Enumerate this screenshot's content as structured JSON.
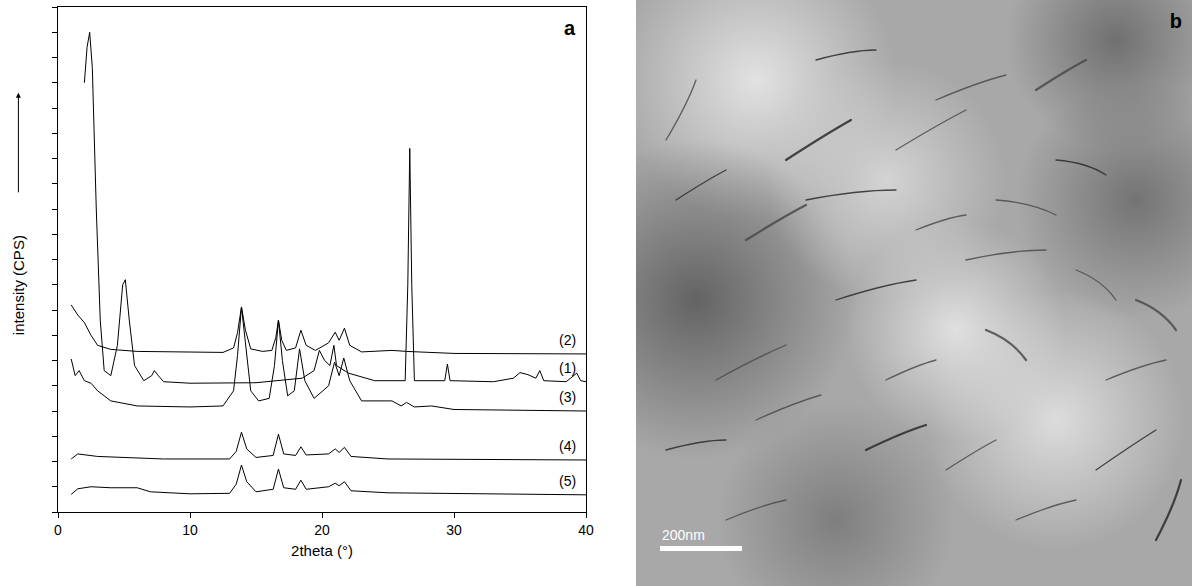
{
  "chart_data": {
    "type": "line",
    "panel_label": "a",
    "x_label": "2theta (°)",
    "y_label": "intensity (CPS)",
    "xlim": [
      0,
      40
    ],
    "xticks": [
      0,
      10,
      20,
      30,
      40
    ],
    "ylim": [
      0,
      100
    ],
    "yticks": [
      0,
      5,
      10,
      15,
      20,
      25,
      30,
      35,
      40,
      45,
      50,
      55,
      60,
      65,
      70,
      75,
      80,
      85,
      90,
      95,
      100
    ],
    "tick_labels": "x",
    "grid": false,
    "series": [
      {
        "name": "(1)",
        "color": "#000000",
        "x": [
          2.0,
          2.2,
          2.4,
          2.6,
          2.9,
          3.2,
          3.5,
          4.0,
          4.5,
          4.9,
          5.1,
          5.4,
          5.8,
          6.5,
          7.1,
          7.3,
          7.6,
          8,
          10,
          15,
          18.5,
          19.4,
          19.8,
          20.2,
          20.6,
          20.9,
          21.1,
          22,
          24,
          26.3,
          26.5,
          26.65,
          26.8,
          27,
          29.3,
          29.5,
          29.7,
          33,
          34.5,
          35,
          35.6,
          36.2,
          36.5,
          36.8,
          38.5,
          39.3,
          39.6,
          40
        ],
        "values": [
          85,
          92,
          95,
          88,
          60,
          38,
          28,
          27,
          33,
          45,
          46,
          38,
          29,
          26,
          27,
          28,
          27,
          25.8,
          25.5,
          25.6,
          26.5,
          28,
          32,
          30,
          29,
          33,
          29,
          27.5,
          26,
          26,
          45,
          72,
          45,
          26,
          26,
          29.3,
          26,
          25.8,
          26.5,
          27.6,
          27.2,
          26.5,
          28,
          26,
          25.8,
          27.5,
          26,
          25.8
        ]
      },
      {
        "name": "(2)",
        "color": "#000000",
        "x": [
          1.0,
          1.5,
          2,
          2.5,
          3,
          4,
          6,
          10,
          12.5,
          13.3,
          13.6,
          13.9,
          14.2,
          14.6,
          15.5,
          16.2,
          16.5,
          16.7,
          16.95,
          17.3,
          18,
          18.4,
          18.8,
          19.5,
          20.5,
          21,
          21.3,
          21.7,
          22.1,
          23,
          25.3,
          26.4,
          30,
          40
        ],
        "values": [
          41,
          39,
          37.5,
          35,
          33,
          32.2,
          31.8,
          31.6,
          31.6,
          32.5,
          35.5,
          40.6,
          36,
          32.3,
          31.8,
          32,
          34.5,
          38,
          34,
          32,
          32.5,
          36,
          33,
          32,
          33.5,
          35.6,
          34,
          36.4,
          33,
          31.7,
          32,
          31.8,
          31.4,
          31.3
        ]
      },
      {
        "name": "(3)",
        "color": "#000000",
        "x": [
          1,
          1.3,
          1.6,
          2,
          2.5,
          3,
          4,
          6,
          10,
          12.5,
          13.3,
          13.6,
          13.9,
          14.2,
          14.6,
          15.2,
          16,
          16.4,
          16.7,
          17,
          17.4,
          17.9,
          18.3,
          18.7,
          19.4,
          20.5,
          20.95,
          21.3,
          21.65,
          22.1,
          23,
          25.3,
          26,
          26.4,
          27,
          28.3,
          30,
          40
        ],
        "values": [
          30.3,
          27,
          28,
          26,
          25.5,
          24,
          22,
          21,
          20.8,
          21,
          24,
          31,
          40.6,
          33,
          24,
          22,
          22.5,
          29,
          38,
          30,
          23,
          24,
          32.3,
          26,
          22.5,
          25,
          29.7,
          27,
          30.5,
          26,
          22,
          22,
          21,
          21.7,
          20.8,
          21,
          20.3,
          20
        ]
      },
      {
        "name": "(4)",
        "color": "#000000",
        "x": [
          1,
          1.5,
          3,
          8,
          13,
          13.5,
          13.9,
          14.3,
          15,
          16.3,
          16.7,
          17.1,
          18,
          18.4,
          18.8,
          20.5,
          21,
          21.3,
          21.7,
          22.2,
          25,
          40
        ],
        "values": [
          10.5,
          11.5,
          11,
          10.5,
          10.5,
          12,
          15.8,
          12.5,
          10.8,
          11.2,
          15.4,
          11.5,
          11.2,
          12.9,
          11.3,
          11.5,
          12.5,
          11.8,
          12.8,
          11,
          10.5,
          10.3
        ]
      },
      {
        "name": "(5)",
        "color": "#000000",
        "x": [
          1,
          1.5,
          2.5,
          4,
          6,
          7,
          10,
          13,
          13.5,
          13.9,
          14.3,
          15,
          16.3,
          16.7,
          17.1,
          18,
          18.4,
          18.8,
          20.5,
          21,
          21.3,
          21.7,
          22.2,
          25,
          40
        ],
        "values": [
          3.5,
          4.6,
          5,
          4.8,
          4.8,
          4,
          3.6,
          3.7,
          5.5,
          9.3,
          6,
          4,
          4.5,
          8.5,
          4.8,
          4.5,
          6.3,
          4.5,
          5,
          5.7,
          5.2,
          6,
          4.2,
          3.8,
          3.4
        ]
      }
    ]
  },
  "image": {
    "panel_label": "b",
    "scale_bar": "200nm"
  }
}
